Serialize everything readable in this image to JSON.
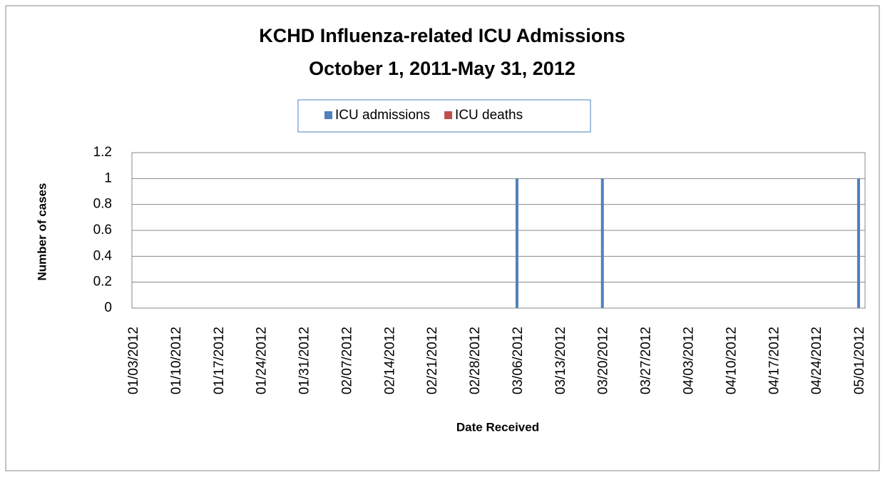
{
  "chart_data": {
    "type": "bar",
    "title": "KCHD  Influenza-related ICU Admissions",
    "subtitle": "October 1, 2011-May 31, 2012",
    "x_label": "Date Received",
    "y_label": "Number of cases",
    "categories": [
      "01/03/2012",
      "01/10/2012",
      "01/17/2012",
      "01/24/2012",
      "01/31/2012",
      "02/07/2012",
      "02/14/2012",
      "02/21/2012",
      "02/28/2012",
      "03/06/2012",
      "03/13/2012",
      "03/20/2012",
      "03/27/2012",
      "04/03/2012",
      "04/10/2012",
      "04/17/2012",
      "04/24/2012",
      "05/01/2012"
    ],
    "series": [
      {
        "name": "ICU admissions",
        "color": "#4f81bd",
        "values": [
          0,
          0,
          0,
          0,
          0,
          0,
          0,
          0,
          0,
          1,
          0,
          1,
          0,
          0,
          0,
          0,
          0,
          1
        ]
      },
      {
        "name": "ICU deaths",
        "color": "#c0504d",
        "values": [
          0,
          0,
          0,
          0,
          0,
          0,
          0,
          0,
          0,
          0,
          0,
          0,
          0,
          0,
          0,
          0,
          0,
          0
        ]
      }
    ],
    "ylim": [
      0,
      1.2
    ],
    "yticks": [
      0,
      0.2,
      0.4,
      0.6,
      0.8,
      1,
      1.2
    ],
    "grid": true,
    "legend": "top"
  }
}
